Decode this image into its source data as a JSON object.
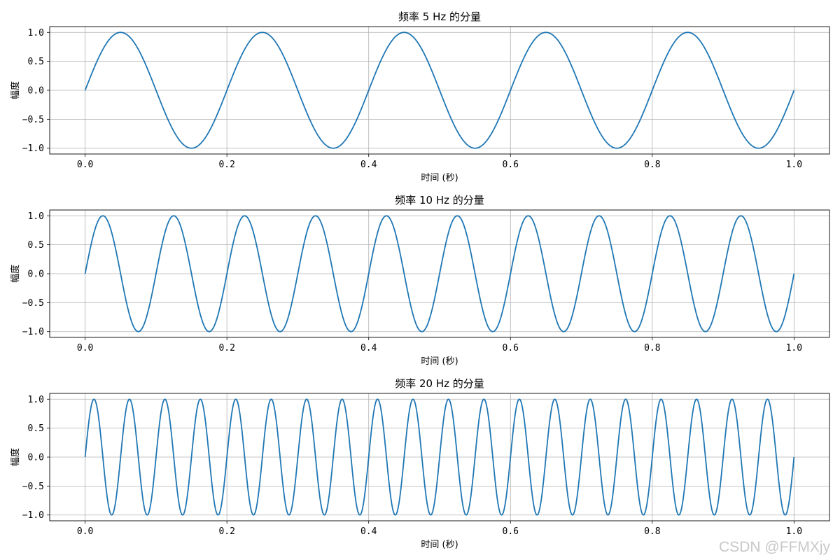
{
  "figure": {
    "watermark": "CSDN @FFMXjy",
    "colors": {
      "line": "#1f77b4",
      "grid": "#b0b0b0",
      "axes": "#000000",
      "background": "#ffffff"
    }
  },
  "chart_data": [
    {
      "type": "line",
      "title": "频率 5 Hz 的分量",
      "xlabel": "时间 (秒)",
      "ylabel": "幅度",
      "xlim": [
        -0.05,
        1.05
      ],
      "ylim": [
        -1.1,
        1.1
      ],
      "xticks": [
        "0.0",
        "0.2",
        "0.4",
        "0.6",
        "0.8",
        "1.0"
      ],
      "yticks": [
        "1.0",
        "0.5",
        "0.0",
        "−0.5",
        "−1.0"
      ],
      "grid": true,
      "series": [
        {
          "function": "sin",
          "frequency_hz": 5,
          "amplitude": 1,
          "x_range": [
            0,
            1
          ]
        }
      ]
    },
    {
      "type": "line",
      "title": "频率 10 Hz 的分量",
      "xlabel": "时间 (秒)",
      "ylabel": "幅度",
      "xlim": [
        -0.05,
        1.05
      ],
      "ylim": [
        -1.1,
        1.1
      ],
      "xticks": [
        "0.0",
        "0.2",
        "0.4",
        "0.6",
        "0.8",
        "1.0"
      ],
      "yticks": [
        "1.0",
        "0.5",
        "0.0",
        "−0.5",
        "−1.0"
      ],
      "grid": true,
      "series": [
        {
          "function": "sin",
          "frequency_hz": 10,
          "amplitude": 1,
          "x_range": [
            0,
            1
          ]
        }
      ]
    },
    {
      "type": "line",
      "title": "频率 20 Hz 的分量",
      "xlabel": "时间 (秒)",
      "ylabel": "幅度",
      "xlim": [
        -0.05,
        1.05
      ],
      "ylim": [
        -1.1,
        1.1
      ],
      "xticks": [
        "0.0",
        "0.2",
        "0.4",
        "0.6",
        "0.8",
        "1.0"
      ],
      "yticks": [
        "1.0",
        "0.5",
        "0.0",
        "−0.5",
        "−1.0"
      ],
      "grid": true,
      "series": [
        {
          "function": "sin",
          "frequency_hz": 20,
          "amplitude": 1,
          "x_range": [
            0,
            1
          ]
        }
      ]
    }
  ]
}
